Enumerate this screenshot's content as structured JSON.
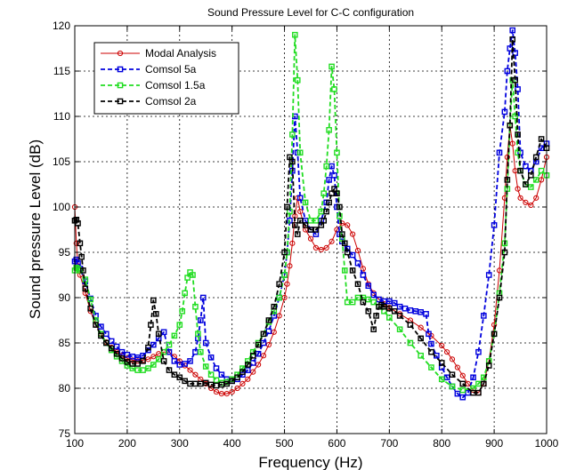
{
  "chart_data": {
    "type": "line",
    "title": "Sound Pressure Level for C-C configuration",
    "xlabel": "Frequency (Hz)",
    "ylabel": "Sound pressure Level (dB)",
    "xlim": [
      100,
      1000
    ],
    "ylim": [
      75,
      120
    ],
    "xticks": [
      100,
      200,
      300,
      400,
      500,
      600,
      700,
      800,
      900,
      1000
    ],
    "yticks": [
      75,
      80,
      85,
      90,
      95,
      100,
      105,
      110,
      115,
      120
    ],
    "xtick_labels": [
      "100",
      "200",
      "300",
      "400",
      "500",
      "600",
      "700",
      "800",
      "900",
      "1000"
    ],
    "ytick_labels": [
      "75",
      "80",
      "85",
      "90",
      "95",
      "100",
      "105",
      "110",
      "115",
      "120"
    ],
    "grid": true,
    "legend_position": "top-left",
    "series": [
      {
        "name": "Modal Analysis",
        "color": "#cc0000",
        "marker": "circle",
        "line_style": "solid",
        "x": [
          100,
          103,
          106,
          110,
          120,
          130,
          140,
          150,
          160,
          170,
          180,
          190,
          200,
          210,
          220,
          230,
          240,
          250,
          260,
          270,
          280,
          290,
          300,
          310,
          320,
          330,
          340,
          350,
          360,
          370,
          380,
          390,
          400,
          410,
          420,
          430,
          440,
          450,
          460,
          470,
          480,
          490,
          500,
          505,
          510,
          515,
          520,
          525,
          530,
          540,
          550,
          560,
          570,
          580,
          590,
          600,
          610,
          620,
          630,
          640,
          650,
          660,
          670,
          680,
          690,
          700,
          720,
          740,
          760,
          780,
          800,
          810,
          820,
          830,
          840,
          850,
          860,
          870,
          880,
          890,
          900,
          910,
          920,
          925,
          930,
          935,
          940,
          945,
          950,
          960,
          970,
          980,
          990,
          1000
        ],
        "y": [
          100,
          96,
          93.5,
          92.5,
          90.5,
          88.5,
          87,
          86,
          85.1,
          84.5,
          84,
          83.6,
          83.3,
          83.1,
          83,
          83.1,
          83.2,
          83.5,
          83.8,
          84,
          84,
          83.5,
          83,
          82.5,
          82,
          81.5,
          81,
          80.5,
          80,
          79.6,
          79.4,
          79.4,
          79.6,
          80,
          80.5,
          81,
          81.8,
          82.6,
          83.6,
          84.8,
          86.2,
          88,
          90,
          91.5,
          93.5,
          96,
          99,
          101,
          99.5,
          97.5,
          96.5,
          95.5,
          95.3,
          95.5,
          96.2,
          97.5,
          98.2,
          98,
          97,
          95.2,
          93.2,
          91.5,
          90.5,
          89.8,
          89.3,
          88.9,
          88.2,
          87.5,
          86.7,
          85.8,
          84.7,
          84,
          83.2,
          82.3,
          81.4,
          80.5,
          79.8,
          79.5,
          80.5,
          83,
          87,
          93,
          101,
          105.5,
          109,
          107,
          104,
          102,
          101,
          100.5,
          100.2,
          101,
          103,
          105.5
        ]
      },
      {
        "name": "Comsol 5a",
        "color": "#0000dd",
        "marker": "square",
        "line_style": "dashed",
        "x": [
          100,
          103,
          106,
          110,
          120,
          130,
          140,
          150,
          160,
          170,
          180,
          190,
          200,
          210,
          220,
          230,
          240,
          250,
          260,
          270,
          280,
          290,
          300,
          310,
          320,
          330,
          335,
          340,
          345,
          350,
          360,
          370,
          380,
          390,
          400,
          410,
          420,
          430,
          440,
          450,
          460,
          470,
          480,
          490,
          500,
          505,
          510,
          515,
          520,
          525,
          530,
          540,
          550,
          560,
          570,
          580,
          585,
          590,
          595,
          600,
          605,
          610,
          620,
          630,
          640,
          650,
          660,
          670,
          680,
          690,
          700,
          710,
          720,
          730,
          740,
          750,
          760,
          770,
          775,
          780,
          790,
          800,
          810,
          820,
          830,
          840,
          850,
          860,
          870,
          880,
          890,
          900,
          910,
          920,
          925,
          930,
          935,
          940,
          945,
          950,
          960,
          970,
          980,
          990,
          1000
        ],
        "y": [
          94,
          94.2,
          93.8,
          93.2,
          91.8,
          89.9,
          88,
          86.8,
          86,
          85.2,
          84.6,
          84,
          83.7,
          83.5,
          83.4,
          83.6,
          84.2,
          84.8,
          85.5,
          86.2,
          84,
          83,
          82.6,
          82.7,
          83,
          84,
          85.5,
          87.5,
          90,
          85,
          83.4,
          82.2,
          81.5,
          81,
          80.8,
          81,
          81.5,
          82,
          82.8,
          83.8,
          85,
          86.3,
          88,
          90,
          92.5,
          95,
          98.5,
          104,
          110,
          106,
          101,
          98.5,
          97.5,
          97,
          98.5,
          100.5,
          103,
          104.5,
          103.5,
          100,
          97,
          96.2,
          95.4,
          94.7,
          93.8,
          92.5,
          91.3,
          90.3,
          89.8,
          89.6,
          89.6,
          89.4,
          89,
          88.8,
          88.6,
          88.5,
          88.4,
          88.2,
          86,
          84.9,
          83.6,
          82.3,
          81.2,
          80.2,
          79.4,
          79,
          79.5,
          81.2,
          84,
          88,
          92.5,
          98,
          106,
          110.5,
          115,
          117.5,
          119.5,
          117,
          113,
          106,
          104.5,
          104,
          105,
          106.5,
          107
        ]
      },
      {
        "name": "Comsol 1.5a",
        "color": "#22dd22",
        "marker": "square",
        "line_style": "dashed",
        "x": [
          100,
          103,
          106,
          110,
          120,
          130,
          140,
          150,
          160,
          170,
          180,
          190,
          200,
          210,
          220,
          230,
          240,
          250,
          260,
          270,
          280,
          290,
          300,
          305,
          310,
          315,
          320,
          325,
          330,
          335,
          340,
          350,
          360,
          370,
          380,
          390,
          400,
          410,
          420,
          430,
          440,
          450,
          460,
          470,
          480,
          490,
          500,
          505,
          510,
          515,
          520,
          525,
          530,
          540,
          550,
          560,
          570,
          575,
          580,
          585,
          590,
          595,
          600,
          605,
          610,
          615,
          620,
          630,
          640,
          650,
          660,
          670,
          680,
          690,
          700,
          720,
          740,
          760,
          780,
          800,
          820,
          840,
          860,
          870,
          880,
          890,
          900,
          910,
          920,
          925,
          930,
          935,
          940,
          945,
          950,
          960,
          970,
          980,
          990,
          1000
        ],
        "y": [
          93,
          93.3,
          93.2,
          93,
          92,
          89.8,
          87.5,
          86,
          85,
          84.2,
          83.5,
          83,
          82.5,
          82.2,
          82,
          82,
          82.2,
          82.6,
          83.2,
          84,
          84.8,
          85.8,
          87,
          88.5,
          90.5,
          92.2,
          92.8,
          92.5,
          89,
          86,
          84,
          82.4,
          81.5,
          80.9,
          80.6,
          80.7,
          81,
          81.5,
          82.2,
          83,
          84,
          85,
          86,
          87.3,
          88.5,
          90,
          92.5,
          95,
          99.5,
          108,
          119,
          114,
          106,
          100.5,
          98.5,
          98.5,
          99.5,
          101.5,
          104.5,
          108.5,
          115.5,
          113,
          106,
          99,
          96.5,
          93,
          89.5,
          89.5,
          90,
          90,
          89.8,
          89.5,
          89,
          88.5,
          87.8,
          86.5,
          85,
          83.6,
          82.3,
          81,
          80.2,
          79.8,
          80,
          80.5,
          81.2,
          83,
          86,
          90.5,
          96,
          102,
          109,
          114,
          110,
          106,
          104,
          102.5,
          102.2,
          103,
          104,
          103.5
        ]
      },
      {
        "name": "Comsol 2a",
        "color": "#000000",
        "marker": "square",
        "line_style": "dashed",
        "x": [
          100,
          103,
          106,
          110,
          113,
          116,
          120,
          130,
          140,
          150,
          160,
          170,
          180,
          190,
          200,
          210,
          220,
          230,
          240,
          245,
          250,
          255,
          260,
          270,
          280,
          290,
          300,
          310,
          320,
          330,
          340,
          350,
          360,
          370,
          380,
          390,
          400,
          410,
          420,
          430,
          440,
          450,
          460,
          470,
          480,
          490,
          500,
          505,
          510,
          515,
          520,
          525,
          530,
          540,
          550,
          560,
          570,
          575,
          580,
          585,
          590,
          595,
          600,
          605,
          610,
          615,
          620,
          630,
          640,
          650,
          660,
          670,
          675,
          680,
          685,
          690,
          700,
          710,
          720,
          740,
          760,
          780,
          800,
          820,
          840,
          860,
          870,
          880,
          890,
          900,
          910,
          920,
          925,
          930,
          935,
          940,
          945,
          950,
          960,
          970,
          980,
          990,
          1000
        ],
        "y": [
          98.5,
          98.6,
          98.2,
          96,
          94.5,
          93,
          91,
          88.8,
          87,
          85.8,
          85,
          84.4,
          83.8,
          83.3,
          82.9,
          82.7,
          82.7,
          83,
          84.5,
          87,
          89.7,
          88.2,
          86,
          83,
          82,
          81.5,
          81.2,
          80.8,
          80.5,
          80.5,
          80.5,
          80.6,
          80.4,
          80.3,
          80.4,
          80.5,
          80.8,
          81.2,
          81.8,
          82.6,
          83.6,
          84.8,
          86,
          87.5,
          89,
          91.5,
          95,
          100,
          105.5,
          105,
          98,
          97,
          98.5,
          98,
          97.5,
          97.5,
          98,
          98.5,
          99.5,
          100.5,
          101.5,
          102,
          101.5,
          100,
          97,
          96,
          95,
          93,
          91.5,
          89.5,
          88.5,
          86.5,
          88,
          89,
          89.2,
          89,
          88.8,
          88.5,
          88,
          87,
          85.5,
          84,
          82.8,
          81.5,
          80.5,
          79.5,
          79.5,
          80.5,
          82.5,
          86,
          90,
          95,
          103,
          109,
          118.5,
          114,
          108,
          104,
          102.5,
          103.5,
          105.5,
          107.5,
          106.5
        ]
      }
    ]
  }
}
